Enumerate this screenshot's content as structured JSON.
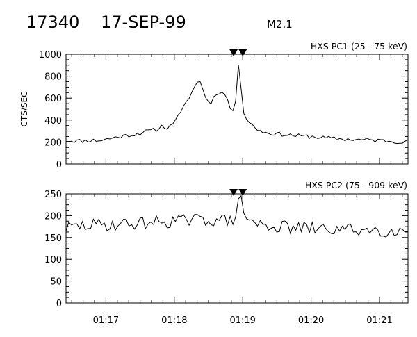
{
  "header": {
    "event_id": "17340",
    "date": "17-SEP-99",
    "flare_class": "M2.1"
  },
  "chart_data": [
    {
      "type": "line",
      "title": "HXS PC1 (25 - 75 keV)",
      "ylabel": "CTS/SEC",
      "xlabel": "",
      "ylim": [
        0,
        1000
      ],
      "yticks": [
        "0",
        "200",
        "400",
        "600",
        "800",
        "1000"
      ],
      "xlim": [
        "01:16:25",
        "01:21:25"
      ],
      "xticks": [
        "01:17",
        "01:18",
        "01:19",
        "01:20",
        "01:21"
      ],
      "marker_times": [
        "01:18:52",
        "01:19:00"
      ],
      "grid": false,
      "series": [
        {
          "x": [
            "01:16:25",
            "01:16:35",
            "01:16:45",
            "01:16:55",
            "01:17:05",
            "01:17:15",
            "01:17:25",
            "01:17:35",
            "01:17:45",
            "01:17:50",
            "01:17:55",
            "01:18:00",
            "01:18:05",
            "01:18:10",
            "01:18:15",
            "01:18:20",
            "01:18:22",
            "01:18:25",
            "01:18:28",
            "01:18:32",
            "01:18:38",
            "01:18:44",
            "01:18:47",
            "01:18:50",
            "01:18:52",
            "01:18:54",
            "01:18:56",
            "01:18:58",
            "01:19:00",
            "01:19:03",
            "01:19:06",
            "01:19:10",
            "01:19:15",
            "01:19:20",
            "01:19:30",
            "01:19:40",
            "01:19:50",
            "01:20:00",
            "01:20:15",
            "01:20:30",
            "01:20:45",
            "01:21:00",
            "01:21:15",
            "01:21:25"
          ],
          "y": [
            215,
            210,
            215,
            215,
            235,
            255,
            270,
            295,
            315,
            350,
            320,
            400,
            450,
            550,
            650,
            740,
            770,
            690,
            580,
            560,
            660,
            640,
            580,
            480,
            460,
            600,
            930,
            800,
            480,
            420,
            380,
            335,
            305,
            285,
            275,
            265,
            255,
            250,
            235,
            225,
            220,
            215,
            205,
            205
          ]
        }
      ]
    },
    {
      "type": "line",
      "title": "HXS PC2 (75 - 909 keV)",
      "ylabel": "",
      "xlabel": "",
      "ylim": [
        0,
        250
      ],
      "yticks": [
        "0",
        "50",
        "100",
        "150",
        "200",
        "250"
      ],
      "xlim": [
        "01:16:25",
        "01:21:25"
      ],
      "xticks": [
        "01:17",
        "01:18",
        "01:19",
        "01:20",
        "01:21"
      ],
      "marker_times": [
        "01:18:52",
        "01:19:00"
      ],
      "grid": false,
      "series": [
        {
          "x": [
            "01:16:25",
            "01:16:45",
            "01:17:05",
            "01:17:25",
            "01:17:45",
            "01:18:05",
            "01:18:25",
            "01:18:40",
            "01:18:50",
            "01:18:55",
            "01:18:58",
            "01:19:02",
            "01:19:10",
            "01:19:25",
            "01:19:45",
            "01:20:05",
            "01:20:25",
            "01:20:45",
            "01:21:05",
            "01:21:25"
          ],
          "y": [
            172,
            178,
            180,
            182,
            186,
            188,
            190,
            192,
            185,
            215,
            240,
            200,
            182,
            176,
            172,
            170,
            168,
            168,
            166,
            166
          ]
        }
      ]
    }
  ]
}
